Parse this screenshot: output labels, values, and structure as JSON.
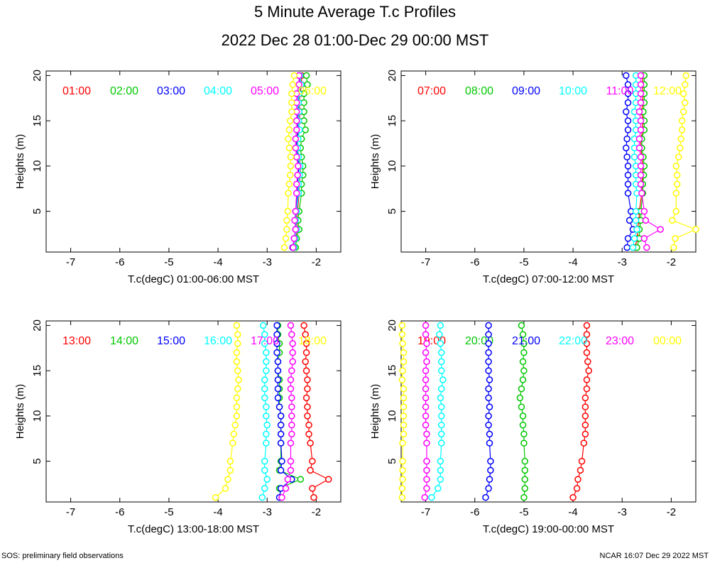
{
  "title": "5 Minute Average T.c Profiles",
  "subtitle": "2022 Dec 28 01:00-Dec 29 00:00 MST",
  "footer": {
    "left": "SOS: preliminary field observations",
    "right": "NCAR 16:07 Dec 29 2022 MST"
  },
  "chart_data": [
    {
      "type": "scatter",
      "xlabel": "T.c(degC) 01:00-06:00 MST",
      "ylabel": "Heights (m)",
      "xlim": [
        -7.5,
        -1.5
      ],
      "ylim": [
        0.5,
        20.5
      ],
      "xticks": [
        -7,
        -6,
        -5,
        -4,
        -3,
        -2
      ],
      "yticks": [
        5,
        10,
        15,
        20
      ],
      "heights": [
        1,
        2,
        3,
        4,
        5,
        7,
        8,
        9,
        10,
        11,
        12,
        13,
        14,
        15,
        16,
        17,
        18,
        19,
        20
      ],
      "series": [
        {
          "name": "01:00",
          "color": "#ff0000",
          "values": [
            -2.45,
            -2.42,
            -2.38,
            -2.4,
            -2.38,
            -2.35,
            -2.35,
            -2.33,
            -2.32,
            -2.35,
            -2.38,
            -2.38,
            -2.35,
            -2.35,
            -2.33,
            -2.35,
            -2.33,
            -2.3,
            -2.3
          ]
        },
        {
          "name": "02:00",
          "color": "#00c800",
          "values": [
            -2.42,
            -2.4,
            -2.35,
            -2.37,
            -2.35,
            -2.3,
            -2.3,
            -2.27,
            -2.27,
            -2.3,
            -2.32,
            -2.3,
            -2.22,
            -2.25,
            -2.25,
            -2.25,
            -2.25,
            -2.18,
            -2.2
          ]
        },
        {
          "name": "03:00",
          "color": "#0000ff",
          "values": [
            -2.48,
            -2.45,
            -2.42,
            -2.43,
            -2.42,
            -2.38,
            -2.38,
            -2.37,
            -2.35,
            -2.38,
            -2.4,
            -2.4,
            -2.37,
            -2.38,
            -2.37,
            -2.37,
            -2.37,
            -2.33,
            -2.35
          ]
        },
        {
          "name": "04:00",
          "color": "#00ffff",
          "values": [
            -2.45,
            -2.43,
            -2.4,
            -2.42,
            -2.4,
            -2.36,
            -2.36,
            -2.34,
            -2.33,
            -2.36,
            -2.38,
            -2.37,
            -2.34,
            -2.36,
            -2.35,
            -2.36,
            -2.35,
            -2.31,
            -2.33
          ]
        },
        {
          "name": "05:00",
          "color": "#ff00ff",
          "values": [
            -2.47,
            -2.45,
            -2.42,
            -2.44,
            -2.42,
            -2.4,
            -2.4,
            -2.38,
            -2.37,
            -2.4,
            -2.42,
            -2.42,
            -2.4,
            -2.4,
            -2.4,
            -2.4,
            -2.4,
            -2.35,
            -2.35
          ]
        },
        {
          "name": "06:00",
          "color": "#ffff00",
          "values": [
            -2.65,
            -2.62,
            -2.6,
            -2.6,
            -2.58,
            -2.57,
            -2.55,
            -2.53,
            -2.52,
            -2.52,
            -2.55,
            -2.57,
            -2.55,
            -2.53,
            -2.5,
            -2.5,
            -2.5,
            -2.48,
            -2.45
          ]
        }
      ]
    },
    {
      "type": "scatter",
      "xlabel": "T.c(degC) 07:00-12:00 MST",
      "ylabel": "Heights (m)",
      "xlim": [
        -7.5,
        -1.5
      ],
      "ylim": [
        0.5,
        20.5
      ],
      "xticks": [
        -7,
        -6,
        -5,
        -4,
        -3,
        -2
      ],
      "yticks": [
        5,
        10,
        15,
        20
      ],
      "heights": [
        1,
        2,
        3,
        4,
        5,
        7,
        8,
        9,
        10,
        11,
        12,
        13,
        14,
        15,
        16,
        17,
        18,
        19,
        20
      ],
      "series": [
        {
          "name": "07:00",
          "color": "#ff0000",
          "values": [
            -2.75,
            -2.68,
            -2.7,
            -2.65,
            -2.65,
            -2.6,
            -2.6,
            -2.58,
            -2.58,
            -2.6,
            -2.62,
            -2.62,
            -2.58,
            -2.58,
            -2.6,
            -2.58,
            -2.58,
            -2.58,
            -2.58
          ]
        },
        {
          "name": "08:00",
          "color": "#00c800",
          "values": [
            -2.7,
            -2.65,
            -2.65,
            -2.62,
            -2.62,
            -2.58,
            -2.58,
            -2.56,
            -2.55,
            -2.57,
            -2.6,
            -2.6,
            -2.55,
            -2.55,
            -2.57,
            -2.55,
            -2.55,
            -2.55,
            -2.55
          ]
        },
        {
          "name": "09:00",
          "color": "#0000ff",
          "values": [
            -2.9,
            -2.88,
            -2.78,
            -2.85,
            -2.82,
            -2.88,
            -2.88,
            -2.88,
            -2.88,
            -2.9,
            -2.92,
            -2.9,
            -2.88,
            -2.88,
            -2.92,
            -2.88,
            -2.88,
            -2.88,
            -2.92
          ]
        },
        {
          "name": "10:00",
          "color": "#00ffff",
          "values": [
            -2.78,
            -2.75,
            -2.7,
            -2.72,
            -2.72,
            -2.7,
            -2.72,
            -2.72,
            -2.72,
            -2.75,
            -2.75,
            -2.75,
            -2.72,
            -2.72,
            -2.75,
            -2.72,
            -2.72,
            -2.72,
            -2.72
          ]
        },
        {
          "name": "11:00",
          "color": "#ff00ff",
          "values": [
            -2.5,
            -2.55,
            -2.22,
            -2.52,
            -2.55,
            -2.6,
            -2.62,
            -2.62,
            -2.62,
            -2.62,
            -2.65,
            -2.65,
            -2.62,
            -2.62,
            -2.65,
            -2.62,
            -2.62,
            -2.62,
            -2.62
          ]
        },
        {
          "name": "12:00",
          "color": "#ffff00",
          "values": [
            -1.95,
            -1.92,
            -1.5,
            -1.98,
            -1.9,
            -1.9,
            -1.88,
            -1.88,
            -1.9,
            -1.85,
            -1.82,
            -1.8,
            -1.78,
            -1.78,
            -1.75,
            -1.72,
            -1.75,
            -1.72,
            -1.7
          ]
        }
      ]
    },
    {
      "type": "scatter",
      "xlabel": "T.c(degC) 13:00-18:00 MST",
      "ylabel": "Heights (m)",
      "xlim": [
        -7.5,
        -1.5
      ],
      "ylim": [
        0.5,
        20.5
      ],
      "xticks": [
        -7,
        -6,
        -5,
        -4,
        -3,
        -2
      ],
      "yticks": [
        5,
        10,
        15,
        20
      ],
      "heights": [
        1,
        2,
        3,
        4,
        5,
        7,
        8,
        9,
        10,
        11,
        12,
        13,
        14,
        15,
        16,
        17,
        18,
        19,
        20
      ],
      "series": [
        {
          "name": "13:00",
          "color": "#ff0000",
          "values": [
            -2.05,
            -2.08,
            -1.75,
            -2.12,
            -2.08,
            -2.12,
            -2.15,
            -2.15,
            -2.18,
            -2.18,
            -2.2,
            -2.18,
            -2.18,
            -2.2,
            -2.22,
            -2.2,
            -2.2,
            -2.22,
            -2.25
          ]
        },
        {
          "name": "14:00",
          "color": "#00c800",
          "values": [
            -2.72,
            -2.75,
            -2.32,
            -2.75,
            -2.72,
            -2.72,
            -2.72,
            -2.72,
            -2.72,
            -2.75,
            -2.75,
            -2.75,
            -2.75,
            -2.78,
            -2.78,
            -2.75,
            -2.75,
            -2.78,
            -2.78
          ]
        },
        {
          "name": "15:00",
          "color": "#0000ff",
          "values": [
            -2.75,
            -2.72,
            -2.5,
            -2.72,
            -2.7,
            -2.72,
            -2.72,
            -2.72,
            -2.72,
            -2.75,
            -2.78,
            -2.78,
            -2.78,
            -2.78,
            -2.78,
            -2.8,
            -2.8,
            -2.8,
            -2.8
          ]
        },
        {
          "name": "16:00",
          "color": "#00ffff",
          "values": [
            -3.1,
            -3.05,
            -3.0,
            -3.05,
            -3.05,
            -3.02,
            -3.02,
            -3.0,
            -3.02,
            -3.02,
            -3.05,
            -3.05,
            -3.05,
            -3.02,
            -3.02,
            -3.02,
            -3.05,
            -3.05,
            -3.08
          ]
        },
        {
          "name": "17:00",
          "color": "#ff00ff",
          "values": [
            -2.7,
            -2.62,
            -2.58,
            -2.52,
            -2.52,
            -2.52,
            -2.5,
            -2.5,
            -2.5,
            -2.5,
            -2.5,
            -2.52,
            -2.52,
            -2.5,
            -2.48,
            -2.48,
            -2.48,
            -2.5,
            -2.52
          ]
        },
        {
          "name": "18:00",
          "color": "#ffff00",
          "values": [
            -4.05,
            -3.85,
            -3.8,
            -3.75,
            -3.75,
            -3.7,
            -3.68,
            -3.65,
            -3.62,
            -3.62,
            -3.62,
            -3.6,
            -3.58,
            -3.6,
            -3.62,
            -3.62,
            -3.6,
            -3.6,
            -3.62
          ]
        }
      ]
    },
    {
      "type": "scatter",
      "xlabel": "T.c(degC) 19:00-00:00 MST",
      "ylabel": "Heights (m)",
      "xlim": [
        -7.5,
        -1.5
      ],
      "ylim": [
        0.5,
        20.5
      ],
      "xticks": [
        -7,
        -6,
        -5,
        -4,
        -3,
        -2
      ],
      "yticks": [
        5,
        10,
        15,
        20
      ],
      "heights": [
        1,
        2,
        3,
        4,
        5,
        7,
        8,
        9,
        10,
        11,
        12,
        13,
        14,
        15,
        16,
        17,
        18,
        19,
        20
      ],
      "series": [
        {
          "name": "19:00",
          "color": "#ff0000",
          "values": [
            -4.0,
            -3.92,
            -3.9,
            -3.85,
            -3.82,
            -3.78,
            -3.75,
            -3.75,
            -3.75,
            -3.75,
            -3.75,
            -3.72,
            -3.72,
            -3.68,
            -3.7,
            -3.72,
            -3.72,
            -3.72,
            -3.72
          ]
        },
        {
          "name": "20:00",
          "color": "#00c800",
          "values": [
            -5.0,
            -4.98,
            -4.98,
            -4.98,
            -4.98,
            -5.0,
            -5.0,
            -5.02,
            -5.02,
            -5.05,
            -5.08,
            -5.05,
            -5.02,
            -5.0,
            -5.02,
            -5.0,
            -5.0,
            -5.02,
            -5.05
          ]
        },
        {
          "name": "21:00",
          "color": "#0000ff",
          "values": [
            -5.78,
            -5.72,
            -5.7,
            -5.68,
            -5.68,
            -5.7,
            -5.7,
            -5.72,
            -5.72,
            -5.7,
            -5.72,
            -5.72,
            -5.7,
            -5.72,
            -5.72,
            -5.72,
            -5.72,
            -5.72,
            -5.72
          ]
        },
        {
          "name": "22:00",
          "color": "#00ffff",
          "values": [
            -6.88,
            -6.75,
            -6.7,
            -6.7,
            -6.7,
            -6.68,
            -6.68,
            -6.68,
            -6.68,
            -6.68,
            -6.7,
            -6.68,
            -6.65,
            -6.68,
            -6.68,
            -6.68,
            -6.7,
            -6.72,
            -6.7
          ]
        },
        {
          "name": "23:00",
          "color": "#ff00ff",
          "values": [
            -7.02,
            -6.98,
            -6.98,
            -6.98,
            -6.98,
            -6.98,
            -6.98,
            -7.0,
            -7.0,
            -7.0,
            -7.0,
            -7.0,
            -7.0,
            -7.0,
            -6.98,
            -7.0,
            -6.98,
            -7.0,
            -7.0
          ]
        },
        {
          "name": "00:00",
          "color": "#ffff00",
          "values": [
            -7.48,
            -7.48,
            -7.47,
            -7.47,
            -7.47,
            -7.47,
            -7.45,
            -7.45,
            -7.45,
            -7.45,
            -7.45,
            -7.45,
            -7.48,
            -7.47,
            -7.45,
            -7.45,
            -7.47,
            -7.48,
            -7.48
          ]
        }
      ]
    }
  ]
}
